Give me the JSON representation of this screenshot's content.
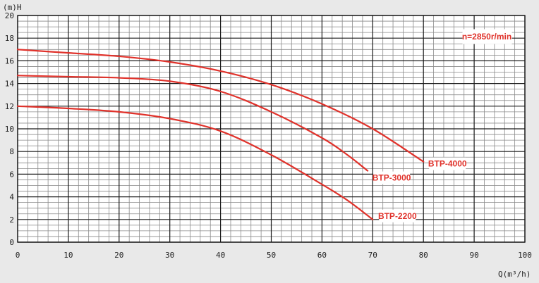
{
  "chart_data": {
    "type": "line",
    "title": "",
    "xlabel": "Q(m³/h)",
    "ylabel": "(m)H",
    "xlim": [
      0,
      100
    ],
    "ylim": [
      0,
      20
    ],
    "x_ticks": [
      "0",
      "10",
      "20",
      "30",
      "40",
      "50",
      "60",
      "70",
      "80",
      "90",
      "100"
    ],
    "y_ticks": [
      "0",
      "2",
      "4",
      "6",
      "8",
      "10",
      "12",
      "14",
      "16",
      "18",
      "20"
    ],
    "grid": true,
    "annotation": "n=2850r/min",
    "series": [
      {
        "name": "BTP-4000",
        "color": "#e0322b",
        "points": [
          [
            0,
            17.0
          ],
          [
            10,
            16.7
          ],
          [
            20,
            16.4
          ],
          [
            30,
            15.9
          ],
          [
            40,
            15.1
          ],
          [
            50,
            13.9
          ],
          [
            60,
            12.2
          ],
          [
            70,
            10.0
          ],
          [
            80,
            7.1
          ]
        ]
      },
      {
        "name": "BTP-3000",
        "color": "#e0322b",
        "points": [
          [
            0,
            14.7
          ],
          [
            10,
            14.6
          ],
          [
            20,
            14.5
          ],
          [
            30,
            14.2
          ],
          [
            40,
            13.3
          ],
          [
            50,
            11.5
          ],
          [
            60,
            9.2
          ],
          [
            65,
            7.7
          ],
          [
            69,
            6.3
          ]
        ]
      },
      {
        "name": "BTP-2200",
        "color": "#e0322b",
        "points": [
          [
            0,
            12.0
          ],
          [
            10,
            11.8
          ],
          [
            20,
            11.5
          ],
          [
            30,
            10.9
          ],
          [
            40,
            9.8
          ],
          [
            50,
            7.7
          ],
          [
            60,
            5.1
          ],
          [
            65,
            3.7
          ],
          [
            70,
            2.0
          ]
        ]
      }
    ]
  }
}
